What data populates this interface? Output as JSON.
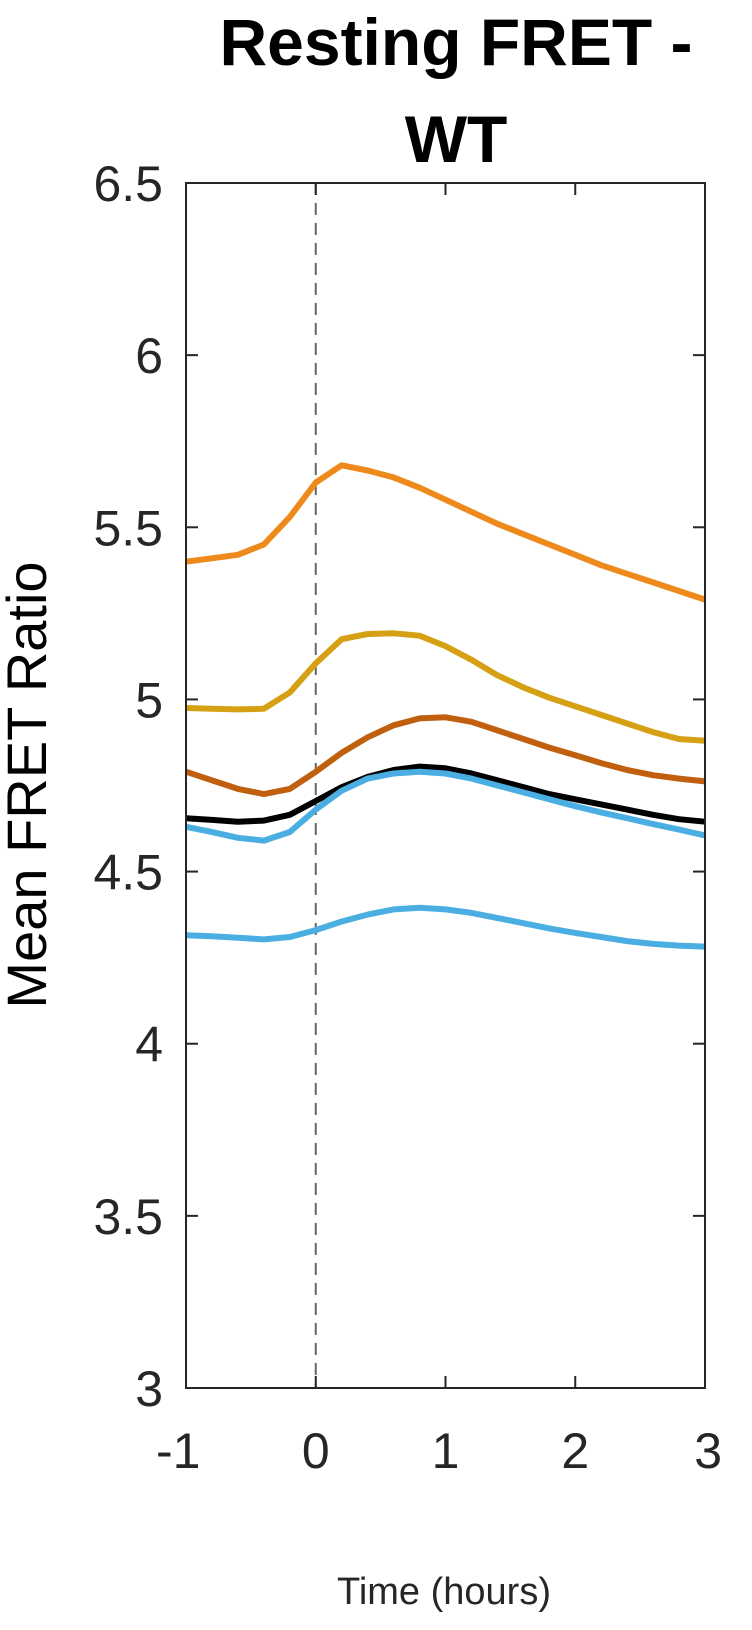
{
  "chart_data": {
    "type": "line",
    "title_lines": [
      "Resting FRET -",
      "WT"
    ],
    "xlabel": "Time (hours)",
    "ylabel": "Mean FRET Ratio",
    "xlim": [
      -1,
      3
    ],
    "ylim": [
      3,
      6.5
    ],
    "xticks": [
      "-1",
      "0",
      "1",
      "2",
      "3"
    ],
    "yticks": [
      "3",
      "3.5",
      "4",
      "4.5",
      "5",
      "5.5",
      "6",
      "6.5"
    ],
    "grid": false,
    "vline": {
      "x": 0,
      "style": "dashed",
      "color": "#666666"
    },
    "x": [
      -1,
      -0.8,
      -0.6,
      -0.4,
      -0.2,
      0,
      0.2,
      0.4,
      0.6,
      0.8,
      1,
      1.2,
      1.4,
      1.6,
      1.8,
      2,
      2.2,
      2.4,
      2.6,
      2.8,
      3
    ],
    "series": [
      {
        "color": "#EE8A1C",
        "values": [
          5.4,
          5.41,
          5.42,
          5.45,
          5.53,
          5.63,
          5.68,
          5.665,
          5.645,
          5.615,
          5.58,
          5.545,
          5.51,
          5.48,
          5.45,
          5.42,
          5.39,
          5.365,
          5.34,
          5.315,
          5.29
        ]
      },
      {
        "color": "#D5A013",
        "values": [
          4.975,
          4.973,
          4.971,
          4.973,
          5.02,
          5.105,
          5.175,
          5.19,
          5.192,
          5.185,
          5.155,
          5.115,
          5.07,
          5.035,
          5.005,
          4.98,
          4.955,
          4.93,
          4.905,
          4.885,
          4.88
        ]
      },
      {
        "color": "#C0600F",
        "values": [
          4.79,
          4.765,
          4.74,
          4.725,
          4.74,
          4.79,
          4.845,
          4.89,
          4.925,
          4.945,
          4.948,
          4.935,
          4.91,
          4.885,
          4.86,
          4.838,
          4.815,
          4.795,
          4.78,
          4.77,
          4.762
        ]
      },
      {
        "color": "#000000",
        "values": [
          4.655,
          4.65,
          4.645,
          4.648,
          4.665,
          4.705,
          4.745,
          4.775,
          4.795,
          4.805,
          4.8,
          4.785,
          4.765,
          4.745,
          4.725,
          4.71,
          4.695,
          4.68,
          4.665,
          4.652,
          4.645
        ]
      },
      {
        "color": "#4BAEE2",
        "values": [
          4.63,
          4.615,
          4.598,
          4.59,
          4.615,
          4.68,
          4.735,
          4.77,
          4.785,
          4.79,
          4.785,
          4.77,
          4.75,
          4.73,
          4.71,
          4.69,
          4.672,
          4.655,
          4.638,
          4.622,
          4.605
        ]
      },
      {
        "color": "#4BAEE2",
        "values": [
          4.315,
          4.312,
          4.308,
          4.303,
          4.31,
          4.33,
          4.355,
          4.375,
          4.39,
          4.395,
          4.39,
          4.38,
          4.365,
          4.35,
          4.335,
          4.322,
          4.31,
          4.298,
          4.29,
          4.285,
          4.282
        ]
      }
    ]
  }
}
